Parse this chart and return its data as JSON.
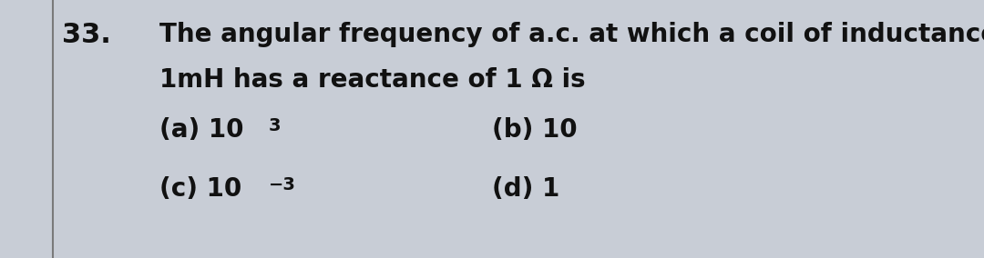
{
  "background_color": "#c8cdd6",
  "left_border_color": "#7a7a7a",
  "question_number": "33.",
  "line1": "The angular frequency of a.c. at which a coil of inductance",
  "line2": "1mH has a reactance of 1 Ω is",
  "opt_a_prefix": "(a) 10",
  "opt_a_sup": "3",
  "opt_b_text": "(b) 10",
  "opt_c_prefix": "(c) 10",
  "opt_c_sup": "−3",
  "opt_d_text": "(d) 1",
  "font_size_main": 20,
  "font_size_options": 20,
  "font_size_qnum": 22,
  "font_size_sup": 14,
  "text_color": "#111111"
}
